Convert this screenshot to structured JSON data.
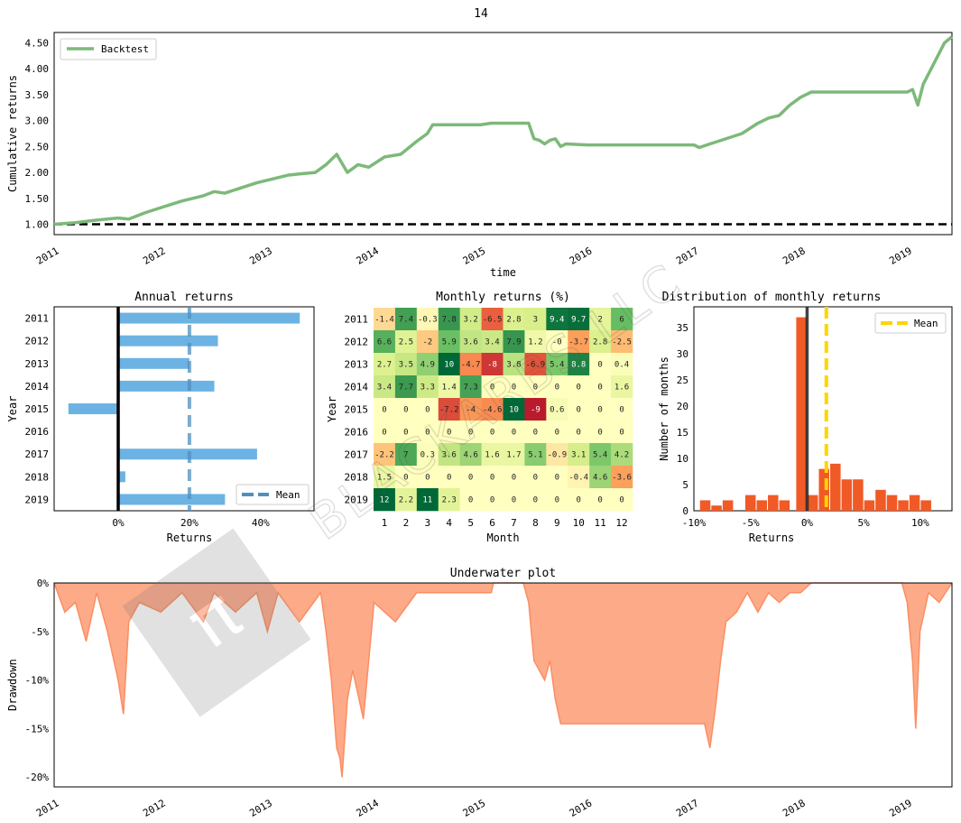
{
  "suptitle": "14",
  "watermark": "BLACKARBS LLC",
  "chart_data": [
    {
      "id": "cumulative",
      "type": "line",
      "title": "",
      "xlabel": "time",
      "ylabel": "Cumulative returns",
      "x_ticks": [
        "2011",
        "2012",
        "2013",
        "2014",
        "2015",
        "2016",
        "2017",
        "2018",
        "2019"
      ],
      "y_ticks": [
        "1.00",
        "1.50",
        "2.00",
        "2.50",
        "3.00",
        "3.50",
        "4.00",
        "4.50"
      ],
      "xlim": [
        2011.0,
        2019.42
      ],
      "ylim": [
        0.8,
        4.7
      ],
      "baseline": 1.0,
      "legend": "top-left",
      "series": [
        {
          "name": "Backtest",
          "color": "#7cb97a",
          "points": [
            [
              2011.0,
              1.0
            ],
            [
              2011.2,
              1.03
            ],
            [
              2011.4,
              1.08
            ],
            [
              2011.6,
              1.12
            ],
            [
              2011.7,
              1.1
            ],
            [
              2011.85,
              1.22
            ],
            [
              2012.0,
              1.32
            ],
            [
              2012.2,
              1.45
            ],
            [
              2012.4,
              1.55
            ],
            [
              2012.5,
              1.63
            ],
            [
              2012.6,
              1.6
            ],
            [
              2012.75,
              1.7
            ],
            [
              2012.9,
              1.8
            ],
            [
              2013.0,
              1.85
            ],
            [
              2013.1,
              1.9
            ],
            [
              2013.2,
              1.95
            ],
            [
              2013.3,
              1.97
            ],
            [
              2013.45,
              2.0
            ],
            [
              2013.55,
              2.15
            ],
            [
              2013.65,
              2.35
            ],
            [
              2013.75,
              2.0
            ],
            [
              2013.85,
              2.15
            ],
            [
              2013.95,
              2.1
            ],
            [
              2014.1,
              2.3
            ],
            [
              2014.25,
              2.35
            ],
            [
              2014.4,
              2.6
            ],
            [
              2014.5,
              2.75
            ],
            [
              2014.55,
              2.92
            ],
            [
              2015.0,
              2.92
            ],
            [
              2015.1,
              2.95
            ],
            [
              2015.45,
              2.95
            ],
            [
              2015.5,
              2.65
            ],
            [
              2015.55,
              2.62
            ],
            [
              2015.6,
              2.55
            ],
            [
              2015.65,
              2.62
            ],
            [
              2015.7,
              2.65
            ],
            [
              2015.75,
              2.5
            ],
            [
              2015.8,
              2.55
            ],
            [
              2016.0,
              2.53
            ],
            [
              2017.0,
              2.53
            ],
            [
              2017.05,
              2.48
            ],
            [
              2017.15,
              2.55
            ],
            [
              2017.3,
              2.65
            ],
            [
              2017.45,
              2.75
            ],
            [
              2017.6,
              2.95
            ],
            [
              2017.7,
              3.05
            ],
            [
              2017.8,
              3.1
            ],
            [
              2017.9,
              3.3
            ],
            [
              2018.0,
              3.45
            ],
            [
              2018.1,
              3.55
            ],
            [
              2019.0,
              3.55
            ],
            [
              2019.05,
              3.6
            ],
            [
              2019.1,
              3.3
            ],
            [
              2019.15,
              3.7
            ],
            [
              2019.25,
              4.1
            ],
            [
              2019.35,
              4.5
            ],
            [
              2019.42,
              4.62
            ]
          ]
        }
      ]
    },
    {
      "id": "annual",
      "type": "bar",
      "orientation": "horizontal",
      "title": "Annual returns",
      "xlabel": "Returns",
      "ylabel": "Year",
      "categories": [
        "2011",
        "2012",
        "2013",
        "2014",
        "2015",
        "2016",
        "2017",
        "2018",
        "2019"
      ],
      "values": [
        51,
        28,
        20,
        27,
        -14,
        0,
        39,
        2,
        30
      ],
      "mean": 20,
      "x_ticks": [
        "0%",
        "20%",
        "40%"
      ],
      "xlim": [
        -18,
        55
      ],
      "legend": "bottom-right",
      "legend_label": "Mean",
      "color": "#6cb3e3"
    },
    {
      "id": "monthly",
      "type": "heatmap",
      "title": "Monthly returns (%)",
      "xlabel": "Month",
      "ylabel": "Year",
      "x_categories": [
        "1",
        "2",
        "3",
        "4",
        "5",
        "6",
        "7",
        "8",
        "9",
        "10",
        "11",
        "12"
      ],
      "y_categories": [
        "2011",
        "2012",
        "2013",
        "2014",
        "2015",
        "2016",
        "2017",
        "2018",
        "2019"
      ],
      "cells": [
        [
          "-1.4",
          "7.4",
          "-0.3",
          "7.8",
          "3.2",
          "-6.5",
          "2.8",
          "3",
          "9.4",
          "9.7",
          "2",
          "6"
        ],
        [
          "6.6",
          "2.5",
          "-2",
          "5.9",
          "3.6",
          "3.4",
          "7.9",
          "1.2",
          "-0",
          "-3.7",
          "2.8",
          "-2.5"
        ],
        [
          "2.7",
          "3.5",
          "4.9",
          "10",
          "-4.7",
          "-8",
          "3.8",
          "-6.9",
          "5.4",
          "8.8",
          "0",
          "0.4"
        ],
        [
          "3.4",
          "7.7",
          "3.3",
          "1.4",
          "7.3",
          "0",
          "0",
          "0",
          "0",
          "0",
          "0",
          "1.6"
        ],
        [
          "0",
          "0",
          "0",
          "-7.2",
          "-4",
          "-4.6",
          "10",
          "-9",
          "0.6",
          "0",
          "0",
          "0"
        ],
        [
          "0",
          "0",
          "0",
          "0",
          "0",
          "0",
          "0",
          "0",
          "0",
          "0",
          "0",
          "0"
        ],
        [
          "-2.2",
          "7",
          "0.3",
          "3.6",
          "4.6",
          "1.6",
          "1.7",
          "5.1",
          "-0.9",
          "3.1",
          "5.4",
          "4.2"
        ],
        [
          "1.5",
          "0",
          "0",
          "0",
          "0",
          "0",
          "0",
          "0",
          "0",
          "-0.4",
          "4.6",
          "-3.6"
        ],
        [
          "12",
          "2.2",
          "11",
          "2.3",
          "0",
          "0",
          "0",
          "0",
          "0",
          "0",
          "0",
          "0"
        ]
      ]
    },
    {
      "id": "distribution",
      "type": "bar",
      "title": "Distribution of monthly returns",
      "xlabel": "Returns",
      "ylabel": "Number of months",
      "x_ticks": [
        "-10%",
        "-5%",
        "0%",
        "5%",
        "10%"
      ],
      "y_ticks": [
        "0",
        "5",
        "10",
        "15",
        "20",
        "25",
        "30",
        "35"
      ],
      "xlim": [
        -10,
        12.8
      ],
      "ylim": [
        0,
        39
      ],
      "mean": 1.7,
      "legend": "top-right",
      "legend_label": "Mean",
      "color": "#f05a26",
      "mean_color": "#ffd400",
      "bins": [
        [
          -9,
          2
        ],
        [
          -8,
          1
        ],
        [
          -7,
          2
        ],
        [
          -5,
          3
        ],
        [
          -4,
          2
        ],
        [
          -3,
          3
        ],
        [
          -2,
          2
        ],
        [
          -0.5,
          37
        ],
        [
          0.5,
          3
        ],
        [
          1.5,
          8
        ],
        [
          2.5,
          9
        ],
        [
          3.5,
          6
        ],
        [
          4.5,
          6
        ],
        [
          5.5,
          2
        ],
        [
          6.5,
          4
        ],
        [
          7.5,
          3
        ],
        [
          8.5,
          2
        ],
        [
          9.5,
          3
        ],
        [
          10.5,
          2
        ]
      ]
    },
    {
      "id": "underwater",
      "type": "area",
      "title": "Underwater plot",
      "xlabel": "",
      "ylabel": "Drawdown",
      "x_ticks": [
        "2011",
        "2012",
        "2013",
        "2014",
        "2015",
        "2016",
        "2017",
        "2018",
        "2019"
      ],
      "y_ticks": [
        "0%",
        "-5%",
        "-10%",
        "-15%",
        "-20%"
      ],
      "xlim": [
        2011.0,
        2019.42
      ],
      "ylim": [
        -21,
        0
      ],
      "color": "#fc8d62",
      "points": [
        [
          2011.0,
          0
        ],
        [
          2011.1,
          -3
        ],
        [
          2011.2,
          -2
        ],
        [
          2011.3,
          -6
        ],
        [
          2011.4,
          -1
        ],
        [
          2011.5,
          -5
        ],
        [
          2011.6,
          -10
        ],
        [
          2011.65,
          -13.5
        ],
        [
          2011.7,
          -4
        ],
        [
          2011.8,
          -2
        ],
        [
          2012.0,
          -3
        ],
        [
          2012.2,
          -1
        ],
        [
          2012.4,
          -4
        ],
        [
          2012.5,
          -1
        ],
        [
          2012.7,
          -3
        ],
        [
          2012.9,
          -1
        ],
        [
          2013.0,
          -5
        ],
        [
          2013.1,
          -1
        ],
        [
          2013.3,
          -4
        ],
        [
          2013.5,
          -1
        ],
        [
          2013.55,
          -5
        ],
        [
          2013.6,
          -10
        ],
        [
          2013.65,
          -17
        ],
        [
          2013.68,
          -18
        ],
        [
          2013.7,
          -20
        ],
        [
          2013.75,
          -12
        ],
        [
          2013.8,
          -9
        ],
        [
          2013.9,
          -14
        ],
        [
          2013.95,
          -8
        ],
        [
          2014.0,
          -2
        ],
        [
          2014.2,
          -4
        ],
        [
          2014.4,
          -1
        ],
        [
          2014.55,
          -1
        ],
        [
          2015.1,
          -1
        ],
        [
          2015.12,
          0
        ],
        [
          2015.4,
          0
        ],
        [
          2015.45,
          -2
        ],
        [
          2015.5,
          -8
        ],
        [
          2015.55,
          -9
        ],
        [
          2015.6,
          -10
        ],
        [
          2015.65,
          -8
        ],
        [
          2015.7,
          -12
        ],
        [
          2015.75,
          -14.5
        ],
        [
          2015.8,
          -14.5
        ],
        [
          2017.1,
          -14.5
        ],
        [
          2017.15,
          -17
        ],
        [
          2017.2,
          -13
        ],
        [
          2017.25,
          -8
        ],
        [
          2017.3,
          -4
        ],
        [
          2017.4,
          -3
        ],
        [
          2017.5,
          -1
        ],
        [
          2017.6,
          -3
        ],
        [
          2017.7,
          -1
        ],
        [
          2017.8,
          -2
        ],
        [
          2017.9,
          -1
        ],
        [
          2018.0,
          -1
        ],
        [
          2018.1,
          0
        ],
        [
          2018.95,
          0
        ],
        [
          2019.0,
          -2
        ],
        [
          2019.05,
          -8
        ],
        [
          2019.08,
          -15
        ],
        [
          2019.12,
          -5
        ],
        [
          2019.2,
          -1
        ],
        [
          2019.3,
          -2
        ],
        [
          2019.42,
          0
        ]
      ]
    }
  ]
}
